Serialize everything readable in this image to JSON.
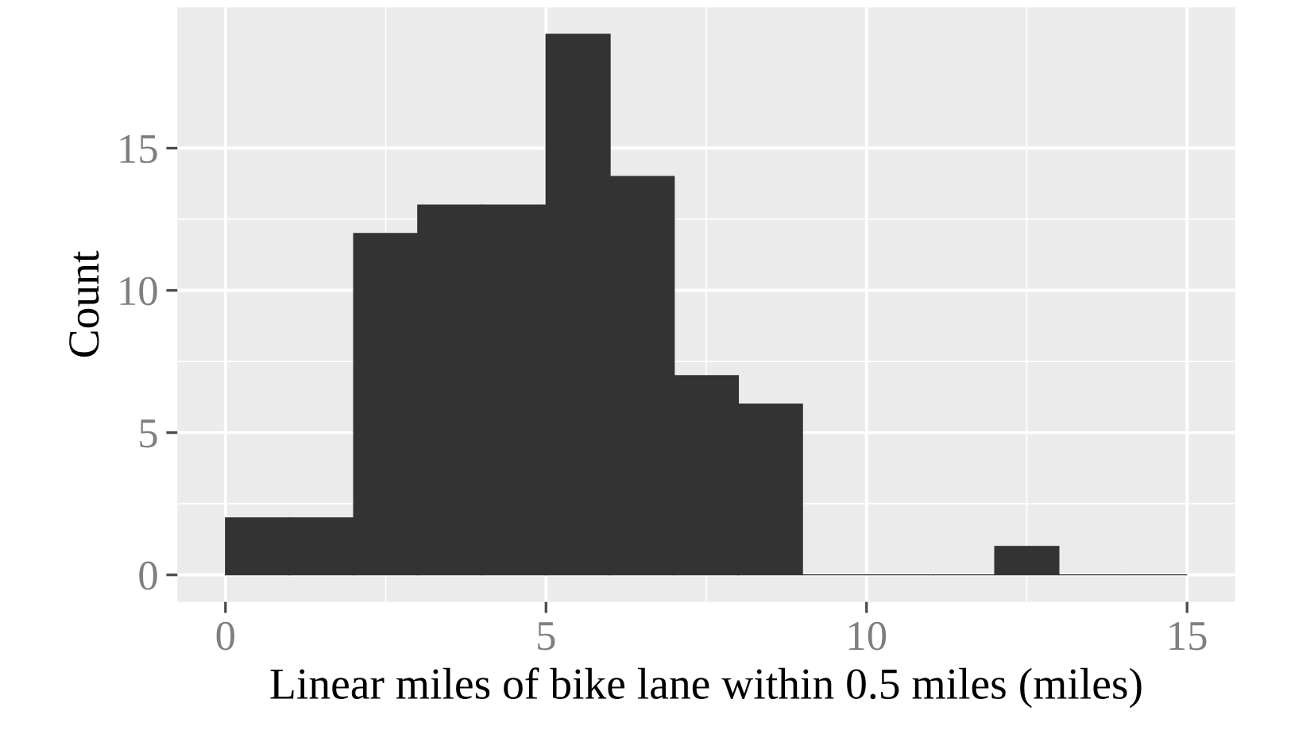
{
  "chart_data": {
    "type": "histogram",
    "xlabel": "Linear miles of bike lane within 0.5 miles (miles)",
    "ylabel": "Count",
    "bins": [
      0,
      1,
      2,
      3,
      4,
      5,
      6,
      7,
      8,
      9,
      10,
      11,
      12,
      13,
      14,
      15
    ],
    "values": [
      2,
      2,
      12,
      13,
      13,
      19,
      14,
      7,
      6,
      0,
      0,
      0,
      1,
      0,
      0
    ],
    "color": "#333333",
    "xlim": [
      -0.75,
      15.75
    ],
    "ylim": [
      -0.95,
      19.95
    ],
    "xticks": [
      0,
      5,
      10,
      15
    ],
    "yticks": [
      0,
      5,
      10,
      15
    ],
    "grid": true
  }
}
